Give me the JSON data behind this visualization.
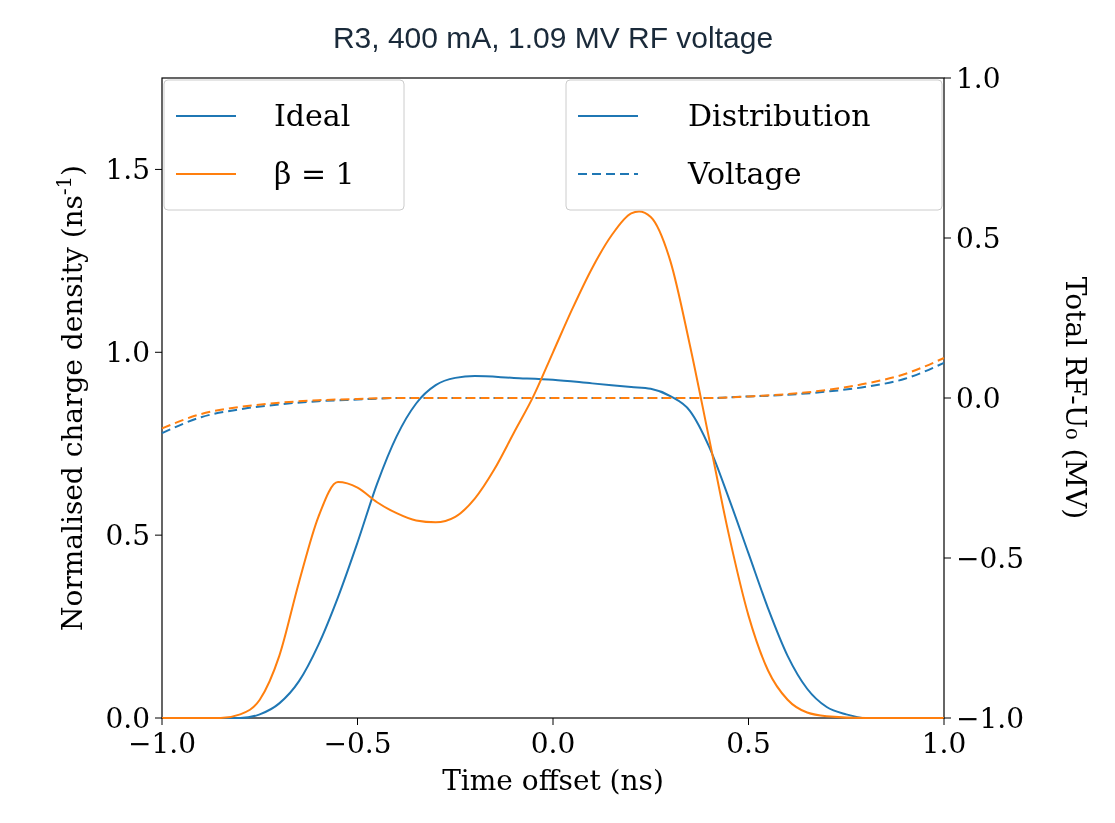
{
  "chart_data": {
    "type": "line",
    "title": "R3, 400 mA, 1.09 MV RF voltage",
    "xlabel": "Time offset (ns)",
    "ylabel": "Normalised charge density (ns$^{-1}$)",
    "y2label": "Total RF-U₀ (MV)",
    "xlim": [
      -1,
      1
    ],
    "ylim": [
      0,
      1.75
    ],
    "y2lim": [
      -1,
      1
    ],
    "xticks": [
      {
        "value": -1,
        "label": "−1.0"
      },
      {
        "value": -0.5,
        "label": "−0.5"
      },
      {
        "value": 0,
        "label": "0.0"
      },
      {
        "value": 0.5,
        "label": "0.5"
      },
      {
        "value": 1,
        "label": "1.0"
      }
    ],
    "yticks": [
      {
        "value": 0,
        "label": "0.0"
      },
      {
        "value": 0.5,
        "label": "0.5"
      },
      {
        "value": 1,
        "label": "1.0"
      },
      {
        "value": 1.5,
        "label": "1.5"
      }
    ],
    "y2ticks": [
      {
        "value": -1,
        "label": "−1.0"
      },
      {
        "value": -0.5,
        "label": "−0.5"
      },
      {
        "value": 0,
        "label": "0.0"
      },
      {
        "value": 0.5,
        "label": "0.5"
      },
      {
        "value": 1,
        "label": "1.0"
      }
    ],
    "legend": "top left",
    "grid": false,
    "annotations": [
      "Distribution",
      "Voltage"
    ],
    "series": [
      {
        "name": "Ideal",
        "color": "#1f77b4",
        "line_style": "solid",
        "x": [
          -1,
          -0.8,
          -0.75,
          -0.7,
          -0.65,
          -0.6,
          -0.55,
          -0.5,
          -0.45,
          -0.4,
          -0.35,
          -0.3,
          -0.25,
          -0.2,
          -0.1,
          0,
          0.1,
          0.2,
          0.25,
          0.3,
          0.35,
          0.4,
          0.45,
          0.5,
          0.55,
          0.6,
          0.65,
          0.7,
          0.75,
          0.8,
          1
        ],
        "values": [
          0,
          0,
          0.01,
          0.04,
          0.1,
          0.2,
          0.33,
          0.48,
          0.64,
          0.77,
          0.86,
          0.91,
          0.93,
          0.935,
          0.93,
          0.925,
          0.915,
          0.905,
          0.9,
          0.88,
          0.84,
          0.74,
          0.6,
          0.45,
          0.3,
          0.17,
          0.08,
          0.03,
          0.01,
          0,
          0
        ]
      },
      {
        "name": "β = 1",
        "color": "#ff7f0e",
        "line_style": "solid",
        "x": [
          -1,
          -0.85,
          -0.8,
          -0.75,
          -0.7,
          -0.65,
          -0.6,
          -0.55,
          -0.5,
          -0.45,
          -0.4,
          -0.35,
          -0.3,
          -0.25,
          -0.2,
          -0.15,
          -0.1,
          -0.05,
          0,
          0.05,
          0.1,
          0.15,
          0.2,
          0.22,
          0.25,
          0.3,
          0.35,
          0.4,
          0.45,
          0.5,
          0.55,
          0.6,
          0.65,
          0.7,
          0.8,
          1
        ],
        "values": [
          0,
          0,
          0.01,
          0.05,
          0.17,
          0.37,
          0.55,
          0.645,
          0.63,
          0.59,
          0.56,
          0.54,
          0.535,
          0.55,
          0.6,
          0.68,
          0.78,
          0.88,
          1.0,
          1.12,
          1.23,
          1.32,
          1.38,
          1.385,
          1.37,
          1.25,
          1.02,
          0.76,
          0.5,
          0.28,
          0.13,
          0.05,
          0.015,
          0.005,
          0,
          0
        ]
      },
      {
        "color": "#1f77b4",
        "line_style": "dashed",
        "axis": "y2",
        "x": [
          -1,
          -0.9,
          -0.8,
          -0.7,
          -0.6,
          -0.5,
          -0.4,
          0,
          0.4,
          0.5,
          0.6,
          0.7,
          0.8,
          0.9,
          1
        ],
        "values": [
          -0.11,
          -0.06,
          -0.035,
          -0.02,
          -0.01,
          -0.005,
          0,
          0,
          0,
          0.005,
          0.01,
          0.02,
          0.035,
          0.06,
          0.11
        ]
      },
      {
        "color": "#ff7f0e",
        "line_style": "dashed",
        "axis": "y2",
        "x": [
          -1,
          -0.9,
          -0.8,
          -0.7,
          -0.6,
          -0.5,
          -0.4,
          0,
          0.4,
          0.5,
          0.6,
          0.7,
          0.8,
          0.9,
          1
        ],
        "values": [
          -0.095,
          -0.05,
          -0.028,
          -0.015,
          -0.007,
          -0.003,
          0,
          0,
          0,
          0.005,
          0.012,
          0.025,
          0.045,
          0.075,
          0.125
        ]
      }
    ]
  }
}
